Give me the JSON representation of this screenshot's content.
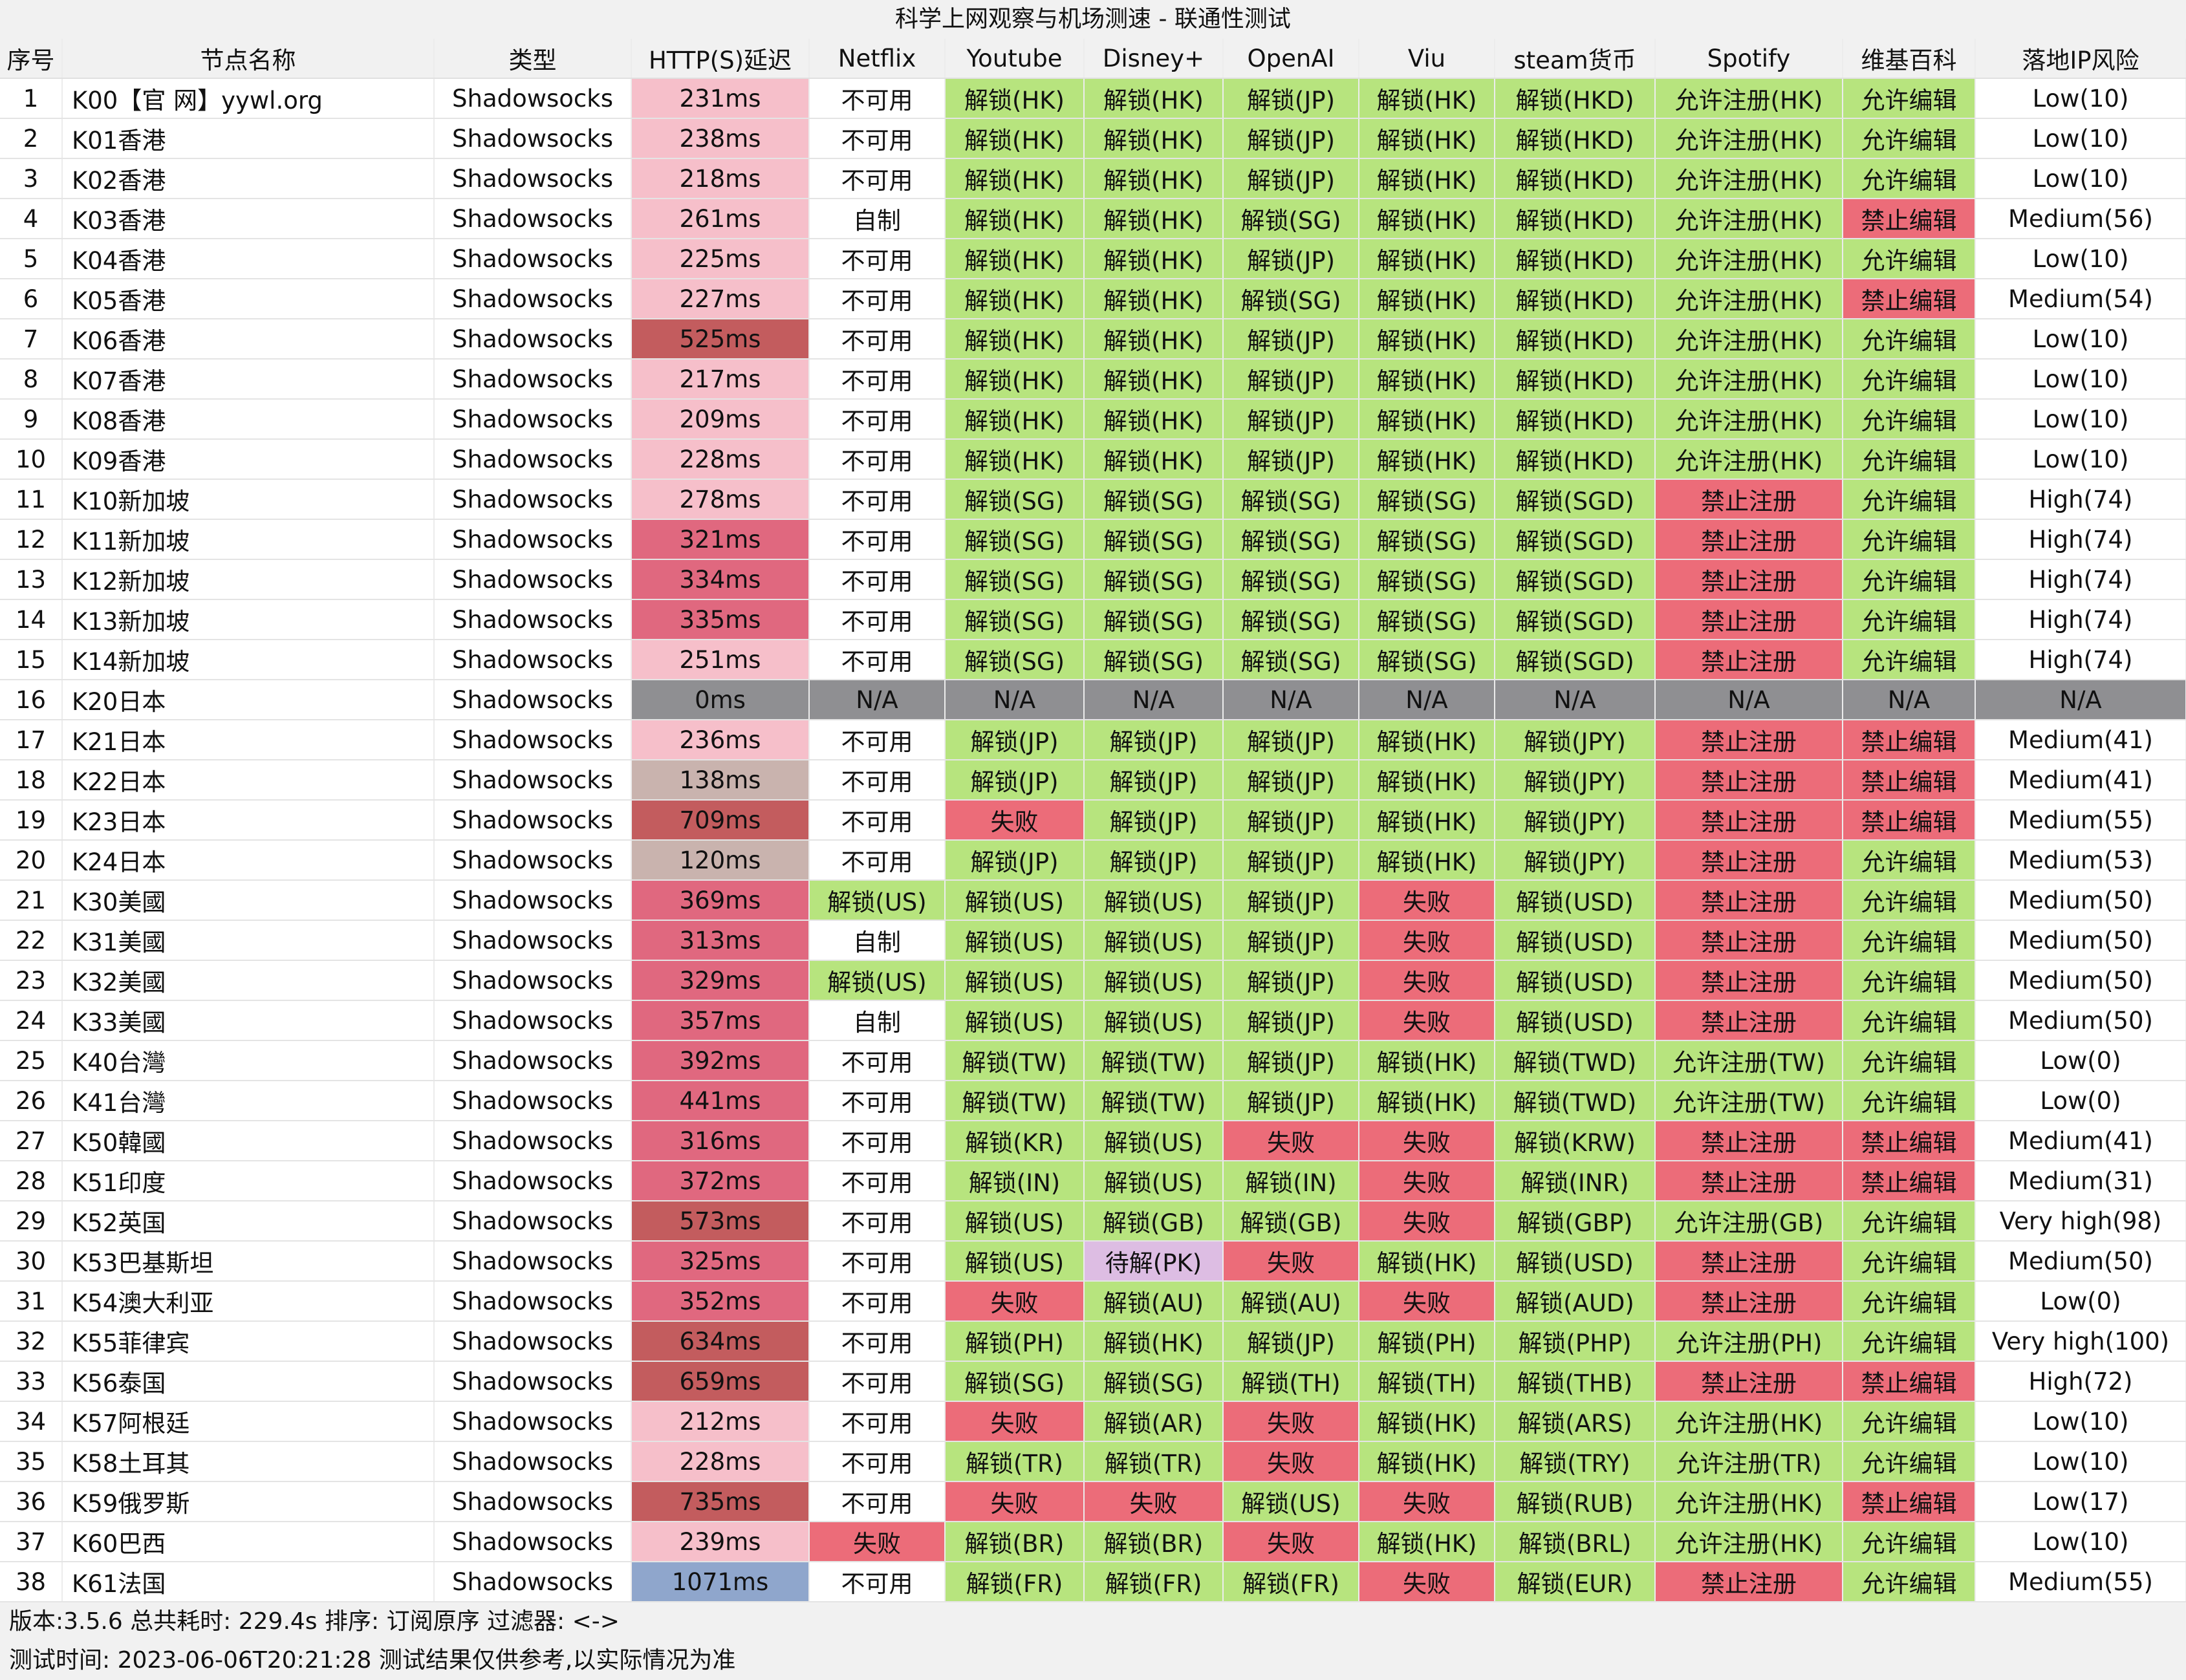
{
  "title": "科学上网观察与机场测速 - 联通性测试",
  "headers": [
    "序号",
    "节点名称",
    "类型",
    "HTTP(S)延迟",
    "Netflix",
    "Youtube",
    "Disney+",
    "OpenAI",
    "Viu",
    "steam货币",
    "Spotify",
    "维基百科",
    "落地IP风险"
  ],
  "colors": {
    "green": "#b7e47e",
    "red": "#ec6c79",
    "gray": "#8f8f92",
    "purple": "#ddbde3",
    "white": "#ffffff",
    "lat_light": "#f6bfca",
    "lat_mid": "#e0687f",
    "lat_dark": "#c35c5e",
    "lat_tan": "#c9b3ae",
    "lat_blue": "#8fa6cc"
  },
  "rows": [
    [
      "1",
      "K00【官 网】yywl.org",
      "Shadowsocks",
      "231ms",
      "不可用",
      "解锁(HK)",
      "解锁(HK)",
      "解锁(JP)",
      "解锁(HK)",
      "解锁(HKD)",
      "允许注册(HK)",
      "允许编辑",
      "Low(10)"
    ],
    [
      "2",
      "K01香港",
      "Shadowsocks",
      "238ms",
      "不可用",
      "解锁(HK)",
      "解锁(HK)",
      "解锁(JP)",
      "解锁(HK)",
      "解锁(HKD)",
      "允许注册(HK)",
      "允许编辑",
      "Low(10)"
    ],
    [
      "3",
      "K02香港",
      "Shadowsocks",
      "218ms",
      "不可用",
      "解锁(HK)",
      "解锁(HK)",
      "解锁(JP)",
      "解锁(HK)",
      "解锁(HKD)",
      "允许注册(HK)",
      "允许编辑",
      "Low(10)"
    ],
    [
      "4",
      "K03香港",
      "Shadowsocks",
      "261ms",
      "自制",
      "解锁(HK)",
      "解锁(HK)",
      "解锁(SG)",
      "解锁(HK)",
      "解锁(HKD)",
      "允许注册(HK)",
      "禁止编辑",
      "Medium(56)"
    ],
    [
      "5",
      "K04香港",
      "Shadowsocks",
      "225ms",
      "不可用",
      "解锁(HK)",
      "解锁(HK)",
      "解锁(JP)",
      "解锁(HK)",
      "解锁(HKD)",
      "允许注册(HK)",
      "允许编辑",
      "Low(10)"
    ],
    [
      "6",
      "K05香港",
      "Shadowsocks",
      "227ms",
      "不可用",
      "解锁(HK)",
      "解锁(HK)",
      "解锁(SG)",
      "解锁(HK)",
      "解锁(HKD)",
      "允许注册(HK)",
      "禁止编辑",
      "Medium(54)"
    ],
    [
      "7",
      "K06香港",
      "Shadowsocks",
      "525ms",
      "不可用",
      "解锁(HK)",
      "解锁(HK)",
      "解锁(JP)",
      "解锁(HK)",
      "解锁(HKD)",
      "允许注册(HK)",
      "允许编辑",
      "Low(10)"
    ],
    [
      "8",
      "K07香港",
      "Shadowsocks",
      "217ms",
      "不可用",
      "解锁(HK)",
      "解锁(HK)",
      "解锁(JP)",
      "解锁(HK)",
      "解锁(HKD)",
      "允许注册(HK)",
      "允许编辑",
      "Low(10)"
    ],
    [
      "9",
      "K08香港",
      "Shadowsocks",
      "209ms",
      "不可用",
      "解锁(HK)",
      "解锁(HK)",
      "解锁(JP)",
      "解锁(HK)",
      "解锁(HKD)",
      "允许注册(HK)",
      "允许编辑",
      "Low(10)"
    ],
    [
      "10",
      "K09香港",
      "Shadowsocks",
      "228ms",
      "不可用",
      "解锁(HK)",
      "解锁(HK)",
      "解锁(JP)",
      "解锁(HK)",
      "解锁(HKD)",
      "允许注册(HK)",
      "允许编辑",
      "Low(10)"
    ],
    [
      "11",
      "K10新加坡",
      "Shadowsocks",
      "278ms",
      "不可用",
      "解锁(SG)",
      "解锁(SG)",
      "解锁(SG)",
      "解锁(SG)",
      "解锁(SGD)",
      "禁止注册",
      "允许编辑",
      "High(74)"
    ],
    [
      "12",
      "K11新加坡",
      "Shadowsocks",
      "321ms",
      "不可用",
      "解锁(SG)",
      "解锁(SG)",
      "解锁(SG)",
      "解锁(SG)",
      "解锁(SGD)",
      "禁止注册",
      "允许编辑",
      "High(74)"
    ],
    [
      "13",
      "K12新加坡",
      "Shadowsocks",
      "334ms",
      "不可用",
      "解锁(SG)",
      "解锁(SG)",
      "解锁(SG)",
      "解锁(SG)",
      "解锁(SGD)",
      "禁止注册",
      "允许编辑",
      "High(74)"
    ],
    [
      "14",
      "K13新加坡",
      "Shadowsocks",
      "335ms",
      "不可用",
      "解锁(SG)",
      "解锁(SG)",
      "解锁(SG)",
      "解锁(SG)",
      "解锁(SGD)",
      "禁止注册",
      "允许编辑",
      "High(74)"
    ],
    [
      "15",
      "K14新加坡",
      "Shadowsocks",
      "251ms",
      "不可用",
      "解锁(SG)",
      "解锁(SG)",
      "解锁(SG)",
      "解锁(SG)",
      "解锁(SGD)",
      "禁止注册",
      "允许编辑",
      "High(74)"
    ],
    [
      "16",
      "K20日本",
      "Shadowsocks",
      "0ms",
      "N/A",
      "N/A",
      "N/A",
      "N/A",
      "N/A",
      "N/A",
      "N/A",
      "N/A",
      "N/A"
    ],
    [
      "17",
      "K21日本",
      "Shadowsocks",
      "236ms",
      "不可用",
      "解锁(JP)",
      "解锁(JP)",
      "解锁(JP)",
      "解锁(HK)",
      "解锁(JPY)",
      "禁止注册",
      "禁止编辑",
      "Medium(41)"
    ],
    [
      "18",
      "K22日本",
      "Shadowsocks",
      "138ms",
      "不可用",
      "解锁(JP)",
      "解锁(JP)",
      "解锁(JP)",
      "解锁(HK)",
      "解锁(JPY)",
      "禁止注册",
      "禁止编辑",
      "Medium(41)"
    ],
    [
      "19",
      "K23日本",
      "Shadowsocks",
      "709ms",
      "不可用",
      "失败",
      "解锁(JP)",
      "解锁(JP)",
      "解锁(HK)",
      "解锁(JPY)",
      "禁止注册",
      "禁止编辑",
      "Medium(55)"
    ],
    [
      "20",
      "K24日本",
      "Shadowsocks",
      "120ms",
      "不可用",
      "解锁(JP)",
      "解锁(JP)",
      "解锁(JP)",
      "解锁(HK)",
      "解锁(JPY)",
      "禁止注册",
      "允许编辑",
      "Medium(53)"
    ],
    [
      "21",
      "K30美國",
      "Shadowsocks",
      "369ms",
      "解锁(US)",
      "解锁(US)",
      "解锁(US)",
      "解锁(JP)",
      "失败",
      "解锁(USD)",
      "禁止注册",
      "允许编辑",
      "Medium(50)"
    ],
    [
      "22",
      "K31美國",
      "Shadowsocks",
      "313ms",
      "自制",
      "解锁(US)",
      "解锁(US)",
      "解锁(JP)",
      "失败",
      "解锁(USD)",
      "禁止注册",
      "允许编辑",
      "Medium(50)"
    ],
    [
      "23",
      "K32美國",
      "Shadowsocks",
      "329ms",
      "解锁(US)",
      "解锁(US)",
      "解锁(US)",
      "解锁(JP)",
      "失败",
      "解锁(USD)",
      "禁止注册",
      "允许编辑",
      "Medium(50)"
    ],
    [
      "24",
      "K33美國",
      "Shadowsocks",
      "357ms",
      "自制",
      "解锁(US)",
      "解锁(US)",
      "解锁(JP)",
      "失败",
      "解锁(USD)",
      "禁止注册",
      "允许编辑",
      "Medium(50)"
    ],
    [
      "25",
      "K40台灣",
      "Shadowsocks",
      "392ms",
      "不可用",
      "解锁(TW)",
      "解锁(TW)",
      "解锁(JP)",
      "解锁(HK)",
      "解锁(TWD)",
      "允许注册(TW)",
      "允许编辑",
      "Low(0)"
    ],
    [
      "26",
      "K41台灣",
      "Shadowsocks",
      "441ms",
      "不可用",
      "解锁(TW)",
      "解锁(TW)",
      "解锁(JP)",
      "解锁(HK)",
      "解锁(TWD)",
      "允许注册(TW)",
      "允许编辑",
      "Low(0)"
    ],
    [
      "27",
      "K50韓國",
      "Shadowsocks",
      "316ms",
      "不可用",
      "解锁(KR)",
      "解锁(US)",
      "失败",
      "失败",
      "解锁(KRW)",
      "禁止注册",
      "禁止编辑",
      "Medium(41)"
    ],
    [
      "28",
      "K51印度",
      "Shadowsocks",
      "372ms",
      "不可用",
      "解锁(IN)",
      "解锁(US)",
      "解锁(IN)",
      "失败",
      "解锁(INR)",
      "禁止注册",
      "禁止编辑",
      "Medium(31)"
    ],
    [
      "29",
      "K52英国",
      "Shadowsocks",
      "573ms",
      "不可用",
      "解锁(US)",
      "解锁(GB)",
      "解锁(GB)",
      "失败",
      "解锁(GBP)",
      "允许注册(GB)",
      "允许编辑",
      "Very high(98)"
    ],
    [
      "30",
      "K53巴基斯坦",
      "Shadowsocks",
      "325ms",
      "不可用",
      "解锁(US)",
      "待解(PK)",
      "失败",
      "解锁(HK)",
      "解锁(USD)",
      "禁止注册",
      "允许编辑",
      "Medium(50)"
    ],
    [
      "31",
      "K54澳大利亚",
      "Shadowsocks",
      "352ms",
      "不可用",
      "失败",
      "解锁(AU)",
      "解锁(AU)",
      "失败",
      "解锁(AUD)",
      "禁止注册",
      "允许编辑",
      "Low(0)"
    ],
    [
      "32",
      "K55菲律宾",
      "Shadowsocks",
      "634ms",
      "不可用",
      "解锁(PH)",
      "解锁(HK)",
      "解锁(JP)",
      "解锁(PH)",
      "解锁(PHP)",
      "允许注册(PH)",
      "允许编辑",
      "Very high(100)"
    ],
    [
      "33",
      "K56泰国",
      "Shadowsocks",
      "659ms",
      "不可用",
      "解锁(SG)",
      "解锁(SG)",
      "解锁(TH)",
      "解锁(TH)",
      "解锁(THB)",
      "禁止注册",
      "禁止编辑",
      "High(72)"
    ],
    [
      "34",
      "K57阿根廷",
      "Shadowsocks",
      "212ms",
      "不可用",
      "失败",
      "解锁(AR)",
      "失败",
      "解锁(HK)",
      "解锁(ARS)",
      "允许注册(HK)",
      "允许编辑",
      "Low(10)"
    ],
    [
      "35",
      "K58土耳其",
      "Shadowsocks",
      "228ms",
      "不可用",
      "解锁(TR)",
      "解锁(TR)",
      "失败",
      "解锁(HK)",
      "解锁(TRY)",
      "允许注册(TR)",
      "允许编辑",
      "Low(10)"
    ],
    [
      "36",
      "K59俄罗斯",
      "Shadowsocks",
      "735ms",
      "不可用",
      "失败",
      "失败",
      "解锁(US)",
      "失败",
      "解锁(RUB)",
      "允许注册(HK)",
      "禁止编辑",
      "Low(17)"
    ],
    [
      "37",
      "K60巴西",
      "Shadowsocks",
      "239ms",
      "失败",
      "解锁(BR)",
      "解锁(BR)",
      "失败",
      "解锁(HK)",
      "解锁(BRL)",
      "允许注册(HK)",
      "允许编辑",
      "Low(10)"
    ],
    [
      "38",
      "K61法国",
      "Shadowsocks",
      "1071ms",
      "不可用",
      "解锁(FR)",
      "解锁(FR)",
      "解锁(FR)",
      "失败",
      "解锁(EUR)",
      "禁止注册",
      "允许编辑",
      "Medium(55)"
    ]
  ],
  "footer": {
    "line1": "版本:3.5.6   总共耗时: 229.4s   排序: 订阅原序    过滤器: <->",
    "line2": "测试时间: 2023-06-06T20:21:28   测试结果仅供参考,以实际情况为准"
  }
}
